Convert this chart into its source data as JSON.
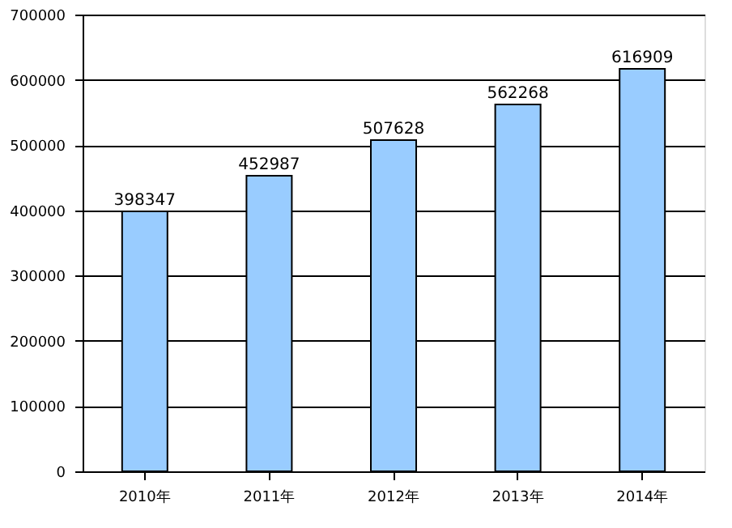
{
  "chart_data": {
    "type": "bar",
    "categories": [
      "2010年",
      "2011年",
      "2012年",
      "2013年",
      "2014年"
    ],
    "values": [
      398347,
      452987,
      507628,
      562268,
      616909
    ],
    "color": "#99ccff",
    "ylim": [
      0,
      700000
    ],
    "yticks": [
      0,
      100000,
      200000,
      300000,
      400000,
      500000,
      600000,
      700000
    ],
    "grid": "y",
    "data_labels": true
  }
}
